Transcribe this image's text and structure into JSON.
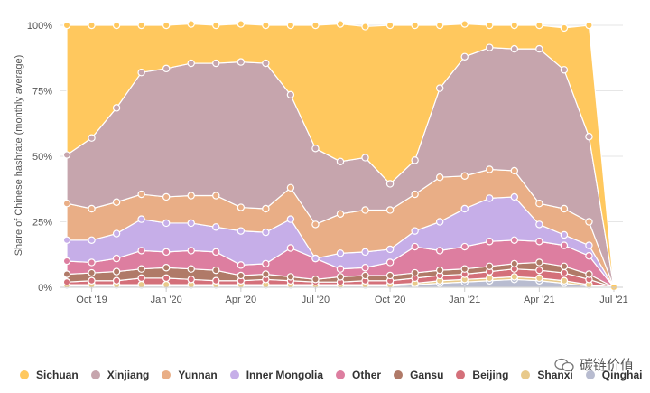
{
  "chart_data": {
    "type": "area",
    "stacked": true,
    "ylabel": "Share of Chinese hashrate (monthly average)",
    "ylim": [
      0,
      100
    ],
    "y_ticks": [
      {
        "value": 0,
        "label": "0%"
      },
      {
        "value": 25,
        "label": "25%"
      },
      {
        "value": 50,
        "label": "50%"
      },
      {
        "value": 75,
        "label": "75%"
      },
      {
        "value": 100,
        "label": "100%"
      }
    ],
    "x": [
      "2019-09",
      "2019-10",
      "2019-11",
      "2019-12",
      "2020-01",
      "2020-02",
      "2020-03",
      "2020-04",
      "2020-05",
      "2020-06",
      "2020-07",
      "2020-08",
      "2020-09",
      "2020-10",
      "2020-11",
      "2020-12",
      "2021-01",
      "2021-02",
      "2021-03",
      "2021-04",
      "2021-05",
      "2021-06",
      "2021-07"
    ],
    "x_ticks": [
      {
        "index": 1,
        "label": "Oct '19"
      },
      {
        "index": 4,
        "label": "Jan '20"
      },
      {
        "index": 7,
        "label": "Apr '20"
      },
      {
        "index": 10,
        "label": "Jul '20"
      },
      {
        "index": 13,
        "label": "Oct '20"
      },
      {
        "index": 16,
        "label": "Jan '21"
      },
      {
        "index": 19,
        "label": "Apr '21"
      },
      {
        "index": 22,
        "label": "Jul '21"
      }
    ],
    "legend_position": "bottom",
    "series": [
      {
        "name": "Qinghai",
        "color": "#b8bcd0",
        "values": [
          0.5,
          0.5,
          0.5,
          0.5,
          0.5,
          0.5,
          0.5,
          0.5,
          0.5,
          0.5,
          0.5,
          0.5,
          0.5,
          0.5,
          1,
          1.5,
          2,
          2.5,
          3,
          2.5,
          1.5,
          0.5,
          0
        ]
      },
      {
        "name": "Shanxi",
        "color": "#e8c98a",
        "values": [
          0.5,
          0.5,
          0.5,
          0.5,
          0.5,
          0.5,
          0.5,
          0.5,
          0.5,
          0.5,
          0.5,
          0.5,
          0.5,
          0.5,
          0.5,
          1,
          1,
          1,
          1,
          1,
          1,
          0.5,
          0
        ]
      },
      {
        "name": "Beijing",
        "color": "#d4707a",
        "values": [
          1,
          1.5,
          1.5,
          2.5,
          2.5,
          2,
          1.5,
          1.5,
          2,
          1.5,
          1,
          1,
          1.5,
          1.5,
          2,
          2,
          2,
          2.5,
          3,
          3,
          3,
          2,
          0
        ]
      },
      {
        "name": "Gansu",
        "color": "#b07a68",
        "values": [
          3,
          3,
          3.5,
          3.5,
          4,
          4,
          4,
          2,
          2,
          1.5,
          1,
          2,
          2,
          2,
          2,
          2,
          2,
          2,
          2,
          3,
          2.5,
          2,
          0
        ]
      },
      {
        "name": "Other",
        "color": "#dd7ea0",
        "values": [
          5,
          4,
          5,
          7,
          6,
          7,
          7,
          4,
          4,
          11,
          8,
          3,
          3,
          5,
          10,
          7.5,
          8.5,
          9.5,
          9,
          8,
          8,
          7,
          0
        ]
      },
      {
        "name": "Inner Mongolia",
        "color": "#c6aee8",
        "values": [
          8,
          8.5,
          9.5,
          12,
          11,
          10.5,
          9.5,
          13,
          12,
          11,
          0,
          6,
          6,
          5,
          6,
          11,
          14.5,
          16.5,
          16.5,
          6.5,
          4,
          4,
          0
        ]
      },
      {
        "name": "Yunnan",
        "color": "#e9ae86",
        "values": [
          14,
          12,
          12,
          9.5,
          10,
          10.5,
          12,
          9,
          9,
          12,
          13,
          15,
          16,
          15,
          14,
          17,
          12.5,
          11,
          10,
          8,
          10,
          9,
          0
        ]
      },
      {
        "name": "Xinjiang",
        "color": "#c6a5ad",
        "values": [
          18.5,
          27,
          36,
          46.5,
          49,
          50.5,
          50.5,
          55.5,
          55.5,
          35.5,
          29,
          20,
          20,
          10,
          13,
          34,
          45.5,
          46.5,
          46.5,
          59,
          53,
          32.5,
          0
        ]
      },
      {
        "name": "Sichuan",
        "color": "#ffc85e",
        "values": [
          49.5,
          43,
          31.5,
          18,
          16.5,
          15,
          14.5,
          14.5,
          14.5,
          26.5,
          47,
          52.5,
          50,
          60.5,
          51.5,
          24,
          12.5,
          8.5,
          9,
          9,
          16,
          22,
          0
        ]
      }
    ],
    "legend_order": [
      "Sichuan",
      "Xinjiang",
      "Yunnan",
      "Inner Mongolia",
      "Other",
      "Gansu",
      "Beijing",
      "Shanxi",
      "Qinghai"
    ],
    "extra_points": [
      {
        "series": "Sichuan",
        "x": "2021-06",
        "y": 100
      }
    ]
  },
  "watermark": {
    "text": "碳链价值"
  },
  "colors": {
    "grid": "#e6e6e6",
    "axis": "#cccccc",
    "marker_stroke": "#ffffff"
  }
}
